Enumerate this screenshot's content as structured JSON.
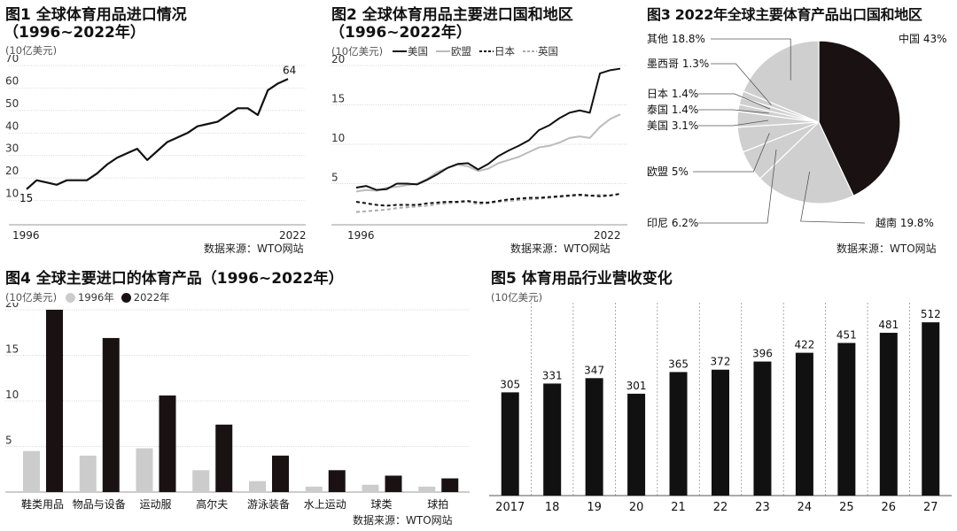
{
  "chart_data": [
    {
      "type": "line",
      "title": "图1 全球体育用品进口情况",
      "subtitle": "（1996~2022年）",
      "unit": "(10亿美元)",
      "source": "数据来源：WTO网站",
      "ylim": [
        0,
        70
      ],
      "yticks": [
        10,
        20,
        30,
        40,
        50,
        60,
        70
      ],
      "x_labels": [
        "1996",
        "2022"
      ],
      "x": [
        1996,
        1997,
        1998,
        1999,
        2000,
        2001,
        2002,
        2003,
        2004,
        2005,
        2006,
        2007,
        2008,
        2009,
        2010,
        2011,
        2012,
        2013,
        2014,
        2015,
        2016,
        2017,
        2018,
        2019,
        2020,
        2021,
        2022
      ],
      "series": [
        {
          "values": [
            15,
            19,
            18,
            17,
            19,
            19,
            19,
            22,
            26,
            29,
            31,
            33,
            28,
            32,
            36,
            38,
            40,
            43,
            44,
            45,
            48,
            51,
            51,
            48,
            59,
            62,
            64
          ]
        }
      ],
      "annotations": [
        {
          "x": 1996,
          "y": 15,
          "text": "15"
        },
        {
          "x": 2022,
          "y": 64,
          "text": "64"
        }
      ]
    },
    {
      "type": "line",
      "title": "图2 全球体育用品主要进口国和地区",
      "subtitle": "（1996~2022年）",
      "unit": "(10亿美元)",
      "source": "数据来源：WTO网站",
      "ylim": [
        0,
        20
      ],
      "yticks": [
        5,
        10,
        15,
        20
      ],
      "x_labels": [
        "1996",
        "2022"
      ],
      "x": [
        1996,
        1997,
        1998,
        1999,
        2000,
        2001,
        2002,
        2003,
        2004,
        2005,
        2006,
        2007,
        2008,
        2009,
        2010,
        2011,
        2012,
        2013,
        2014,
        2015,
        2016,
        2017,
        2018,
        2019,
        2020,
        2021,
        2022
      ],
      "series": [
        {
          "name": "美国",
          "color": "#111111",
          "dash": "",
          "values": [
            4.5,
            4.7,
            4.2,
            4.3,
            5.0,
            5.0,
            4.9,
            5.5,
            6.2,
            7.0,
            7.5,
            7.6,
            6.8,
            7.5,
            8.5,
            9.2,
            9.8,
            10.5,
            11.8,
            12.4,
            13.3,
            14.0,
            14.3,
            14.0,
            19.0,
            19.4,
            19.6
          ]
        },
        {
          "name": "欧盟",
          "color": "#bbbbbb",
          "dash": "",
          "values": [
            4.0,
            4.2,
            4.1,
            4.5,
            4.6,
            4.8,
            5.0,
            5.6,
            6.5,
            7.0,
            7.4,
            7.2,
            6.6,
            6.9,
            7.6,
            8.0,
            8.4,
            9.0,
            9.6,
            9.8,
            10.2,
            10.8,
            11.0,
            10.8,
            12.2,
            13.2,
            13.8
          ]
        },
        {
          "name": "日本",
          "color": "#111111",
          "dash": "4,3",
          "values": [
            2.7,
            2.5,
            2.3,
            2.2,
            2.3,
            2.3,
            2.3,
            2.5,
            2.6,
            2.7,
            2.7,
            2.8,
            2.6,
            2.6,
            2.8,
            3.0,
            3.1,
            3.2,
            3.2,
            3.3,
            3.4,
            3.5,
            3.6,
            3.5,
            3.4,
            3.5,
            3.7
          ]
        },
        {
          "name": "英国",
          "color": "#aaaaaa",
          "dash": "4,3",
          "values": [
            1.4,
            1.5,
            1.6,
            1.7,
            1.9,
            2.0,
            2.1,
            2.2,
            2.4,
            2.5,
            2.6,
            2.7,
            2.4,
            2.5,
            2.7,
            2.8,
            2.9,
            3.0,
            3.1,
            3.2,
            3.3,
            3.4,
            3.5,
            3.4,
            3.6,
            3.5,
            3.7
          ]
        }
      ]
    },
    {
      "type": "pie",
      "title": "图3 2022年全球主要体育产品出口国和地区",
      "source": "数据来源：WTO网站",
      "slices": [
        {
          "label": "中国",
          "value": 43,
          "text": "中国 43%",
          "color": "#1a1212"
        },
        {
          "label": "越南",
          "value": 19.8,
          "text": "越南 19.8%",
          "color": "#cfcfcf"
        },
        {
          "label": "印尼",
          "value": 6.2,
          "text": "印尼 6.2%",
          "color": "#cfcfcf"
        },
        {
          "label": "欧盟",
          "value": 5,
          "text": "欧盟 5%",
          "color": "#cfcfcf"
        },
        {
          "label": "美国",
          "value": 3.1,
          "text": "美国 3.1%",
          "color": "#cfcfcf"
        },
        {
          "label": "泰国",
          "value": 1.4,
          "text": "泰国 1.4%",
          "color": "#cfcfcf"
        },
        {
          "label": "日本",
          "value": 1.4,
          "text": "日本 1.4%",
          "color": "#cfcfcf"
        },
        {
          "label": "墨西哥",
          "value": 1.3,
          "text": "墨西哥 1.3%",
          "color": "#cfcfcf"
        },
        {
          "label": "其他",
          "value": 18.8,
          "text": "其他 18.8%",
          "color": "#cfcfcf"
        }
      ]
    },
    {
      "type": "bar",
      "title": "图4 全球主要进口的体育产品（1996~2022年）",
      "unit": "(10亿美元)",
      "source": "数据来源：WTO网站",
      "ylim": [
        0,
        20
      ],
      "yticks": [
        5,
        10,
        15,
        20
      ],
      "categories": [
        "鞋类用品",
        "物品与设备",
        "运动服",
        "高尔夫",
        "游泳装备",
        "水上运动",
        "球类",
        "球拍"
      ],
      "series": [
        {
          "name": "1996年",
          "color": "#cccccc",
          "values": [
            4.5,
            4.0,
            4.8,
            2.4,
            1.2,
            0.6,
            0.8,
            0.6
          ]
        },
        {
          "name": "2022年",
          "color": "#1a1212",
          "values": [
            20.0,
            16.9,
            10.6,
            7.4,
            4.0,
            2.4,
            1.8,
            1.5
          ]
        }
      ]
    },
    {
      "type": "bar",
      "title": "图5 体育用品行业营收变化",
      "unit": "(10亿美元)",
      "categories": [
        "2017",
        "18",
        "19",
        "20",
        "21",
        "22",
        "23",
        "24",
        "25",
        "26",
        "27"
      ],
      "values": [
        305,
        331,
        347,
        301,
        365,
        372,
        396,
        422,
        451,
        481,
        512
      ],
      "labels": [
        "305",
        "331",
        "347",
        "301",
        "365",
        "372",
        "396",
        "422",
        "451",
        "481",
        "512"
      ],
      "ylim": [
        0,
        570
      ]
    }
  ]
}
